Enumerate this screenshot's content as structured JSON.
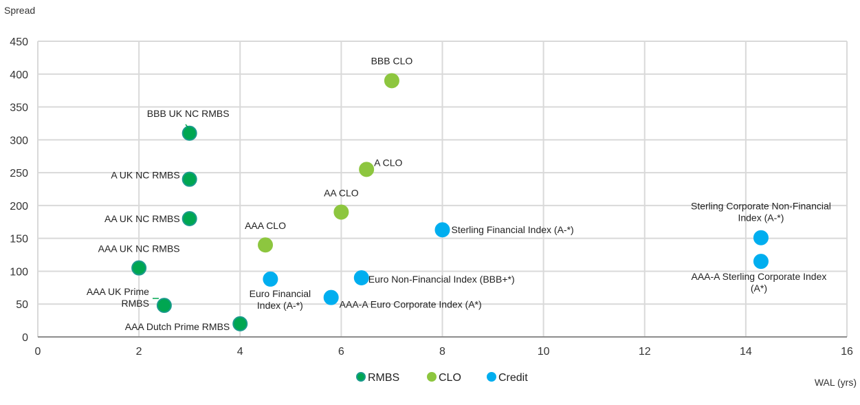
{
  "chart_data": {
    "type": "scatter",
    "ylabel": "Spread",
    "xlabel": "WAL (yrs)",
    "xlim": [
      0,
      16
    ],
    "ylim": [
      0,
      450
    ],
    "xticks": [
      0,
      2,
      4,
      6,
      8,
      10,
      12,
      14,
      16
    ],
    "yticks": [
      0,
      50,
      100,
      150,
      200,
      250,
      300,
      350,
      400,
      450
    ],
    "grid": true,
    "legend_position": "bottom-center",
    "series": [
      {
        "name": "RMBS",
        "color": "#00a651",
        "edge_color": "#1a9a8c",
        "points": [
          {
            "x": 3,
            "y": 310,
            "label": [
              "BBB UK NC RMBS"
            ]
          },
          {
            "x": 3,
            "y": 240,
            "label": [
              "A UK NC RMBS"
            ]
          },
          {
            "x": 3,
            "y": 180,
            "label": [
              "AA UK NC RMBS"
            ]
          },
          {
            "x": 2,
            "y": 105,
            "label": [
              "AAA UK NC RMBS"
            ]
          },
          {
            "x": 2.5,
            "y": 48,
            "label": [
              "AAA UK Prime",
              "RMBS"
            ]
          },
          {
            "x": 4,
            "y": 20,
            "label": [
              "AAA Dutch Prime RMBS"
            ]
          }
        ]
      },
      {
        "name": "CLO",
        "color": "#8dc63f",
        "edge_color": "#8dc63f",
        "points": [
          {
            "x": 7,
            "y": 390,
            "label": [
              "BBB CLO"
            ]
          },
          {
            "x": 6.5,
            "y": 255,
            "label": [
              "A CLO"
            ]
          },
          {
            "x": 6,
            "y": 190,
            "label": [
              "AA CLO"
            ]
          },
          {
            "x": 4.5,
            "y": 140,
            "label": [
              "AAA CLO"
            ]
          }
        ]
      },
      {
        "name": "Credit",
        "color": "#00aeef",
        "edge_color": "#00aeef",
        "points": [
          {
            "x": 8,
            "y": 163,
            "label": [
              "Sterling Financial Index (A-*)"
            ]
          },
          {
            "x": 14.3,
            "y": 151,
            "label": [
              "Sterling Corporate Non-Financial",
              "Index (A-*)"
            ]
          },
          {
            "x": 14.3,
            "y": 115,
            "label": [
              "AAA-A Sterling Corporate Index",
              "(A*)"
            ]
          },
          {
            "x": 6.4,
            "y": 90,
            "label": [
              "Euro Non-Financial Index (BBB+*)"
            ]
          },
          {
            "x": 4.6,
            "y": 88,
            "label": [
              "Euro Financial",
              "Index (A-*)"
            ]
          },
          {
            "x": 5.8,
            "y": 60,
            "label": [
              "AAA-A Euro Corporate Index (A*)"
            ]
          }
        ]
      }
    ]
  }
}
